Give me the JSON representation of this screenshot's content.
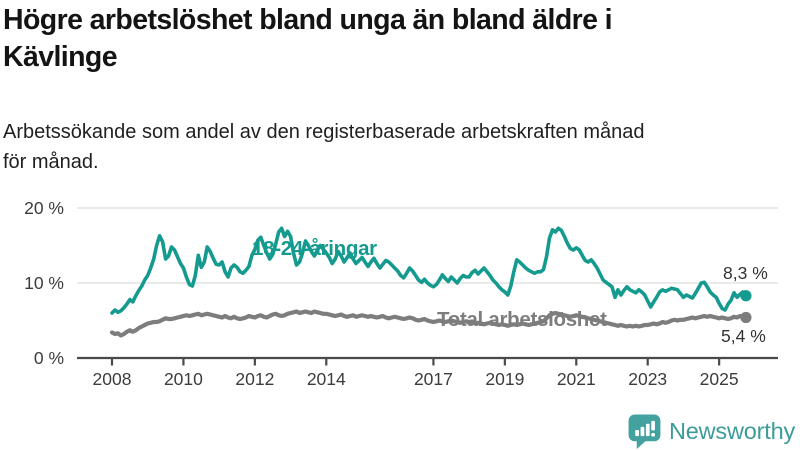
{
  "header": {
    "title_lines": [
      "Högre arbetslöshet bland unga än bland äldre i",
      "Kävlinge"
    ],
    "subtitle_lines": [
      "Arbetssökande som andel av den registerbaserade arbetskraften månad",
      "för månad."
    ]
  },
  "footer": {
    "brand": "Newsworthy",
    "brand_color": "#3D9B99",
    "logo_icon": "speech-bubble-bar-chart-exclamation"
  },
  "chart_data": {
    "type": "line",
    "title": "Högre arbetslöshet bland unga än bland äldre i Kävlinge",
    "subtitle": "Arbetssökande som andel av den registerbaserade arbetskraften månad för månad.",
    "x_unit": "month",
    "x_start_year": 2008,
    "x_end": "2025-10",
    "x_ticks": [
      2008,
      2010,
      2012,
      2014,
      2017,
      2019,
      2021,
      2023,
      2025
    ],
    "y_ticks": [
      {
        "value": 0,
        "label": "0 %"
      },
      {
        "value": 10,
        "label": "10 %"
      },
      {
        "value": 20,
        "label": "20 %"
      }
    ],
    "ylim": [
      0,
      20
    ],
    "grid": "horizontal",
    "legend_position": "inline-labels",
    "series": [
      {
        "name": "18-24-åringar",
        "color": "#149A8E",
        "end_value": 8.3,
        "end_label": "8,3 %",
        "values": [
          6.0,
          6.4,
          6.1,
          6.3,
          6.7,
          7.2,
          7.8,
          7.5,
          8.3,
          9.0,
          9.6,
          10.4,
          11.0,
          12.0,
          13.2,
          15.0,
          16.3,
          15.5,
          13.2,
          13.6,
          14.8,
          14.4,
          13.5,
          12.6,
          12.0,
          10.8,
          9.8,
          9.6,
          11.0,
          13.7,
          12.1,
          12.8,
          14.8,
          14.2,
          13.3,
          12.5,
          12.4,
          12.8,
          11.5,
          10.8,
          12.0,
          12.4,
          12.1,
          11.5,
          11.3,
          11.7,
          12.2,
          13.7,
          14.5,
          15.7,
          16.1,
          15.0,
          14.0,
          13.2,
          13.8,
          15.2,
          16.8,
          17.3,
          16.2,
          16.9,
          16.2,
          14.0,
          12.4,
          12.8,
          14.0,
          15.6,
          15.0,
          14.2,
          13.6,
          14.4,
          15.0,
          14.5,
          14.0,
          13.4,
          12.6,
          13.2,
          14.2,
          13.6,
          12.8,
          13.4,
          14.0,
          13.2,
          12.6,
          13.0,
          13.4,
          12.8,
          12.2,
          12.8,
          13.3,
          12.6,
          12.0,
          12.5,
          13.0,
          12.8,
          12.4,
          12.0,
          11.6,
          11.0,
          10.7,
          11.3,
          12.0,
          11.6,
          11.0,
          10.4,
          10.1,
          10.5,
          10.0,
          9.7,
          9.5,
          9.8,
          10.4,
          11.1,
          10.6,
          10.2,
          10.8,
          10.4,
          10.0,
          10.6,
          11.0,
          10.8,
          10.8,
          11.4,
          11.7,
          11.2,
          11.6,
          12.0,
          11.5,
          11.0,
          10.4,
          10.0,
          9.5,
          9.1,
          8.8,
          8.4,
          9.6,
          11.5,
          13.1,
          12.8,
          12.4,
          12.0,
          11.7,
          11.5,
          11.3,
          11.5,
          11.5,
          11.8,
          13.5,
          16.0,
          17.1,
          16.8,
          17.3,
          17.0,
          16.2,
          15.3,
          14.6,
          14.4,
          14.7,
          14.4,
          13.7,
          13.0,
          12.8,
          13.1,
          12.6,
          12.0,
          11.2,
          10.4,
          10.1,
          9.8,
          9.5,
          8.1,
          9.1,
          8.4,
          9.0,
          9.5,
          9.1,
          8.9,
          8.7,
          9.1,
          8.8,
          8.4,
          7.6,
          6.8,
          7.5,
          8.1,
          8.8,
          9.1,
          8.9,
          9.1,
          9.3,
          9.2,
          9.1,
          8.6,
          8.1,
          8.4,
          8.2,
          8.0,
          8.6,
          9.3,
          10.0,
          10.1,
          9.5,
          8.8,
          8.4,
          8.1,
          7.3,
          6.6,
          6.4,
          7.2,
          7.7,
          8.7,
          8.1,
          8.5,
          8.8,
          8.3
        ]
      },
      {
        "name": "Total arbetslöshet",
        "color": "#7D7D7D",
        "end_value": 5.4,
        "end_label": "5,4 %",
        "values": [
          3.4,
          3.2,
          3.3,
          3.0,
          3.2,
          3.5,
          3.7,
          3.5,
          3.7,
          4.0,
          4.2,
          4.4,
          4.6,
          4.7,
          4.8,
          4.8,
          4.9,
          5.1,
          5.3,
          5.2,
          5.2,
          5.3,
          5.4,
          5.5,
          5.6,
          5.7,
          5.6,
          5.7,
          5.8,
          5.9,
          5.7,
          5.8,
          5.9,
          5.8,
          5.7,
          5.6,
          5.5,
          5.4,
          5.6,
          5.4,
          5.3,
          5.5,
          5.3,
          5.2,
          5.3,
          5.4,
          5.6,
          5.5,
          5.4,
          5.6,
          5.7,
          5.5,
          5.4,
          5.6,
          5.8,
          5.9,
          5.7,
          5.6,
          5.7,
          5.9,
          6.0,
          6.1,
          6.2,
          6.0,
          6.1,
          6.2,
          6.1,
          6.0,
          6.2,
          6.1,
          6.0,
          5.9,
          5.9,
          5.8,
          5.7,
          5.6,
          5.7,
          5.8,
          5.6,
          5.5,
          5.6,
          5.7,
          5.5,
          5.6,
          5.7,
          5.6,
          5.5,
          5.6,
          5.5,
          5.4,
          5.5,
          5.6,
          5.4,
          5.3,
          5.4,
          5.5,
          5.4,
          5.3,
          5.2,
          5.3,
          5.4,
          5.3,
          5.1,
          5.0,
          5.1,
          5.2,
          5.0,
          4.9,
          4.8,
          4.9,
          5.0,
          4.9,
          4.8,
          4.9,
          5.0,
          4.9,
          4.8,
          4.7,
          4.8,
          4.9,
          4.8,
          4.7,
          4.6,
          4.7,
          4.6,
          4.5,
          4.6,
          4.7,
          4.6,
          4.5,
          4.4,
          4.5,
          4.4,
          4.3,
          4.4,
          4.5,
          4.4,
          4.5,
          4.6,
          4.5,
          4.4,
          4.5,
          4.6,
          4.7,
          4.8,
          4.9,
          5.3,
          5.7,
          5.9,
          6.0,
          5.9,
          5.8,
          5.7,
          5.6,
          5.5,
          5.6,
          5.7,
          5.6,
          5.5,
          5.4,
          5.3,
          5.2,
          5.1,
          5.0,
          4.9,
          4.8,
          4.7,
          4.6,
          4.5,
          4.4,
          4.3,
          4.4,
          4.3,
          4.2,
          4.3,
          4.2,
          4.3,
          4.2,
          4.3,
          4.4,
          4.4,
          4.5,
          4.6,
          4.5,
          4.6,
          4.8,
          4.7,
          4.8,
          5.0,
          5.1,
          5.0,
          5.1,
          5.1,
          5.2,
          5.3,
          5.4,
          5.3,
          5.4,
          5.5,
          5.6,
          5.5,
          5.6,
          5.5,
          5.4,
          5.3,
          5.4,
          5.3,
          5.2,
          5.3,
          5.5,
          5.4,
          5.6,
          5.5,
          5.4
        ]
      }
    ]
  }
}
